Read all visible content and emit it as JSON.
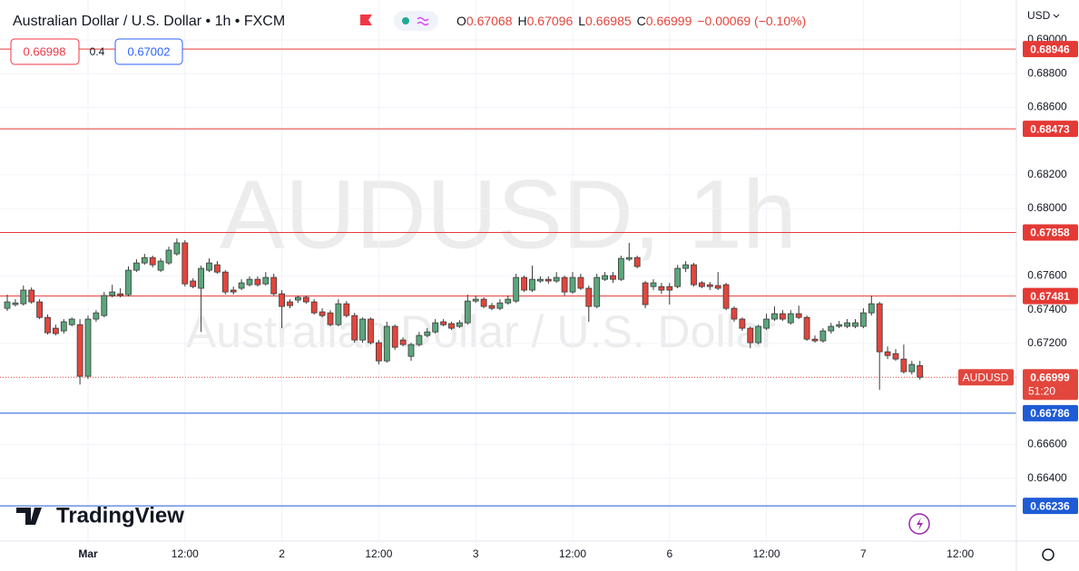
{
  "chart_data": {
    "type": "candlestick",
    "title": "Australian Dollar / U.S. Dollar • 1h • FXCM",
    "legend_labels": [
      "O",
      "H",
      "L",
      "C"
    ],
    "change": "−0.00069 (−0.10%)",
    "quote": {
      "bid": "0.66998",
      "spread": "0.4",
      "ask": "0.67002"
    },
    "currency": "USD",
    "watermark": {
      "symbol": "AUDUSD, 1h",
      "name": "Australian Dollar / U.S. Dollar"
    },
    "logo": "TradingView",
    "symbol_tag": "AUDUSD",
    "countdown": "51:20",
    "up_color": "#5ba67c",
    "down_color": "#e2463d",
    "categories": [
      null,
      null,
      null,
      null,
      null,
      null,
      null,
      null,
      null,
      null,
      "Mar",
      null,
      null,
      null,
      null,
      null,
      null,
      null,
      null,
      null,
      null,
      null,
      "12:00",
      null,
      null,
      null,
      null,
      null,
      null,
      null,
      null,
      null,
      null,
      null,
      "2",
      null,
      null,
      null,
      null,
      null,
      null,
      null,
      null,
      null,
      null,
      null,
      "12:00",
      null,
      null,
      null,
      null,
      null,
      null,
      null,
      null,
      null,
      null,
      null,
      "3",
      null,
      null,
      null,
      null,
      null,
      null,
      null,
      null,
      null,
      null,
      null,
      "12:00",
      null,
      null,
      null,
      null,
      null,
      null,
      null,
      null,
      null,
      null,
      null,
      "6",
      null,
      null,
      null,
      null,
      null,
      null,
      null,
      null,
      null,
      null,
      null,
      "12:00",
      null,
      null,
      null,
      null,
      null,
      null,
      null,
      null,
      null,
      null,
      null,
      "7",
      null,
      null,
      null,
      null,
      null,
      null,
      null,
      null,
      null,
      null,
      null,
      "12:00",
      null,
      null,
      null,
      null,
      null
    ],
    "open": [
      0.67408,
      0.6743,
      0.67435,
      0.67516,
      0.67446,
      0.67354,
      0.6729,
      0.67274,
      0.67311,
      0.67311,
      0.67005,
      0.67344,
      0.67365,
      0.67484,
      0.67494,
      0.67489,
      0.67634,
      0.67677,
      0.67709,
      0.67634,
      0.67677,
      0.67731,
      0.67796,
      0.6757,
      0.67527,
      0.67634,
      0.67666,
      0.67623,
      0.67516,
      0.67527,
      0.67548,
      0.6758,
      0.67553,
      0.67591,
      0.67494,
      0.67446,
      0.67457,
      0.67473,
      0.67446,
      0.67387,
      0.67381,
      0.67311,
      0.67435,
      0.67365,
      0.6722,
      0.67344,
      0.67204,
      0.67096,
      0.67301,
      0.6722,
      0.67123,
      0.67193,
      0.67247,
      0.67268,
      0.67328,
      0.67317,
      0.67301,
      0.67322,
      0.67451,
      0.67462,
      0.67424,
      0.67408,
      0.6744,
      0.67451,
      0.67591,
      0.67516,
      0.6757,
      0.6758,
      0.6757,
      0.67591,
      0.67505,
      0.67591,
      0.67527,
      0.67419,
      0.6758,
      0.67602,
      0.6758,
      0.67699,
      0.67709,
      0.67559,
      0.67537,
      0.67537,
      0.67537,
      0.67537,
      0.67645,
      0.67666,
      0.67559,
      0.67548,
      0.67543,
      0.67548,
      0.67408,
      0.67344,
      0.6729,
      0.67204,
      0.6729,
      0.67344,
      0.67376,
      0.67322,
      0.67376,
      0.67354,
      0.67225,
      0.67215,
      0.67274,
      0.67301,
      0.67301,
      0.67301,
      0.67301,
      0.67381,
      0.67435,
      0.6715,
      0.67139,
      0.67107,
      0.67032,
      0.67068,
      null,
      null,
      null,
      null,
      null,
      null,
      null,
      null,
      null,
      null
    ],
    "high": [
      0.67489,
      0.67462,
      0.67543,
      0.67532,
      0.67462,
      0.67371,
      0.67311,
      0.67344,
      0.67354,
      0.67344,
      0.67365,
      0.67397,
      0.67505,
      0.67548,
      0.67527,
      0.67656,
      0.67699,
      0.67731,
      0.6772,
      0.67704,
      0.67774,
      0.67822,
      0.67812,
      0.67586,
      0.67661,
      0.67704,
      0.67688,
      0.67634,
      0.67537,
      0.6758,
      0.67597,
      0.67597,
      0.67623,
      0.67613,
      0.67516,
      0.67462,
      0.67484,
      0.67484,
      0.67462,
      0.67408,
      0.67397,
      0.67462,
      0.67451,
      0.67381,
      0.67354,
      0.67354,
      0.6722,
      0.67328,
      0.67311,
      0.67236,
      0.67204,
      0.67268,
      0.6729,
      0.67344,
      0.67344,
      0.67328,
      0.67338,
      0.67489,
      0.67484,
      0.67473,
      0.6744,
      0.67462,
      0.67484,
      0.67613,
      0.67602,
      0.67661,
      0.67597,
      0.67597,
      0.67623,
      0.67602,
      0.67623,
      0.67613,
      0.67543,
      0.67613,
      0.67623,
      0.67623,
      0.6772,
      0.67796,
      0.6772,
      0.6757,
      0.6758,
      0.67559,
      0.67559,
      0.67666,
      0.67688,
      0.67677,
      0.6757,
      0.67564,
      0.67623,
      0.67559,
      0.67419,
      0.67354,
      0.67301,
      0.67311,
      0.67376,
      0.67419,
      0.67397,
      0.67397,
      0.67424,
      0.67365,
      0.67247,
      0.6729,
      0.67322,
      0.67333,
      0.67344,
      0.67344,
      0.67408,
      0.67484,
      0.67446,
      0.67182,
      0.67166,
      0.67193,
      0.67096,
      0.67096,
      null,
      null,
      null,
      null,
      null,
      null,
      null,
      null,
      null,
      null
    ],
    "low": [
      0.67392,
      0.67419,
      0.67424,
      0.67435,
      0.67344,
      0.67252,
      0.67247,
      0.67258,
      0.67301,
      0.66956,
      0.66989,
      0.67328,
      0.67354,
      0.67473,
      0.67473,
      0.67478,
      0.67623,
      0.67666,
      0.6765,
      0.67623,
      0.67666,
      0.6772,
      0.67537,
      0.67527,
      0.67268,
      0.67623,
      0.67613,
      0.67489,
      0.67489,
      0.67516,
      0.67537,
      0.67537,
      0.67543,
      0.67484,
      0.6729,
      0.67408,
      0.6744,
      0.67435,
      0.67371,
      0.67354,
      0.67301,
      0.67301,
      0.67354,
      0.67204,
      0.67204,
      0.67193,
      0.67075,
      0.67085,
      0.67161,
      0.67182,
      0.67096,
      0.67182,
      0.67236,
      0.67258,
      0.67301,
      0.67279,
      0.6729,
      0.67311,
      0.6744,
      0.67408,
      0.67397,
      0.67397,
      0.6743,
      0.6744,
      0.67505,
      0.67505,
      0.67559,
      0.67553,
      0.67559,
      0.67484,
      0.67494,
      0.67516,
      0.67328,
      0.67408,
      0.6757,
      0.67559,
      0.6757,
      0.67688,
      0.67645,
      0.67408,
      0.67516,
      0.67494,
      0.6743,
      0.67527,
      0.67623,
      0.67537,
      0.67527,
      0.67516,
      0.67516,
      0.67397,
      0.67328,
      0.67274,
      0.67171,
      0.67193,
      0.67279,
      0.67333,
      0.67333,
      0.67311,
      0.67344,
      0.67215,
      0.67204,
      0.67204,
      0.67258,
      0.6729,
      0.6729,
      0.6729,
      0.6729,
      0.67365,
      0.66924,
      0.67107,
      0.67096,
      0.67021,
      0.67015,
      0.66985,
      null,
      null,
      null,
      null,
      null,
      null,
      null,
      null,
      null,
      null
    ],
    "close": [
      0.67446,
      0.6744,
      0.67516,
      0.67446,
      0.67354,
      0.67263,
      0.67258,
      0.67328,
      0.67344,
      0.67005,
      0.67344,
      0.67381,
      0.67484,
      0.67505,
      0.67484,
      0.67634,
      0.67677,
      0.67709,
      0.67666,
      0.67688,
      0.67753,
      0.67796,
      0.67553,
      0.67537,
      0.67645,
      0.67677,
      0.67623,
      0.67505,
      0.67505,
      0.67559,
      0.6758,
      0.67548,
      0.67591,
      0.67494,
      0.67419,
      0.67424,
      0.67473,
      0.67446,
      0.67381,
      0.67365,
      0.67311,
      0.67435,
      0.67365,
      0.6722,
      0.67344,
      0.67204,
      0.67096,
      0.67301,
      0.67177,
      0.67193,
      0.67193,
      0.67247,
      0.67268,
      0.67322,
      0.67311,
      0.6729,
      0.67322,
      0.67451,
      0.67462,
      0.67419,
      0.67408,
      0.6744,
      0.67462,
      0.67591,
      0.67516,
      0.6758,
      0.6758,
      0.6757,
      0.67591,
      0.67505,
      0.67591,
      0.67527,
      0.67419,
      0.67591,
      0.67602,
      0.6758,
      0.67704,
      0.67709,
      0.67656,
      0.6743,
      0.67559,
      0.67516,
      0.67516,
      0.67645,
      0.67666,
      0.67548,
      0.67537,
      0.67537,
      0.67527,
      0.67408,
      0.67344,
      0.6729,
      0.67204,
      0.67301,
      0.67344,
      0.67376,
      0.67344,
      0.67376,
      0.67354,
      0.67225,
      0.67215,
      0.67274,
      0.67301,
      0.67311,
      0.67322,
      0.67322,
      0.67381,
      0.67435,
      0.6715,
      0.67128,
      0.67107,
      0.67032,
      0.67075,
      0.66999,
      null,
      null,
      null,
      null,
      null,
      null,
      null,
      null,
      null,
      null
    ],
    "levels": [
      {
        "value": 0.68946,
        "color": "#e53935"
      },
      {
        "value": 0.68473,
        "color": "#e53935"
      },
      {
        "value": 0.67858,
        "color": "#e53935"
      },
      {
        "value": 0.67481,
        "color": "#e53935"
      },
      {
        "value": 0.66786,
        "color": "#1e5bd6"
      },
      {
        "value": 0.66236,
        "color": "#1e5bd6"
      }
    ],
    "ylim": [
      0.66027,
      0.69237
    ],
    "yticks": [
      {
        "value": 0.69,
        "label": "0.69000"
      },
      {
        "value": 0.688,
        "label": "0.68800"
      },
      {
        "value": 0.686,
        "label": "0.68600"
      },
      {
        "value": 0.682,
        "label": "0.68200"
      },
      {
        "value": 0.68,
        "label": "0.68000"
      },
      {
        "value": 0.676,
        "label": "0.67600"
      },
      {
        "value": 0.674,
        "label": "0.67400"
      },
      {
        "value": 0.672,
        "label": "0.67200"
      },
      {
        "value": 0.666,
        "label": "0.66600"
      },
      {
        "value": 0.664,
        "label": "0.66400"
      }
    ],
    "grid": true
  }
}
